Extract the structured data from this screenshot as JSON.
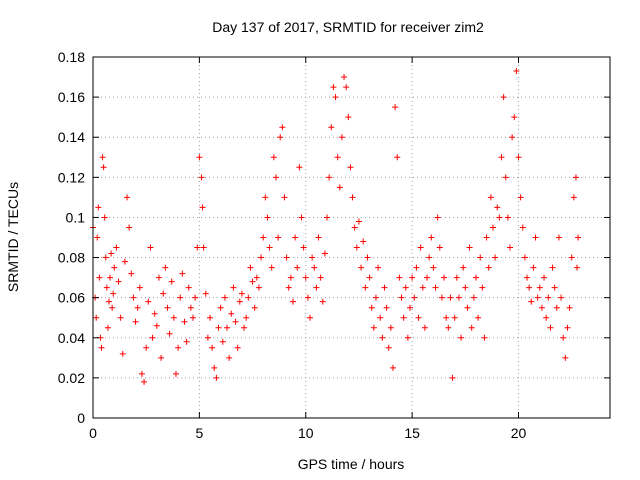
{
  "chart_data": {
    "type": "scatter",
    "title": "Day 137 of 2017, SRMTID for receiver zim2",
    "xlabel": "GPS time / hours",
    "ylabel": "SRMTID / TECUs",
    "xlim": [
      0,
      24.3
    ],
    "ylim": [
      0,
      0.18
    ],
    "x_ticks": [
      0,
      5,
      10,
      15,
      20
    ],
    "y_ticks": [
      0,
      0.02,
      0.04,
      0.06,
      0.08,
      0.1,
      0.12,
      0.14,
      0.16,
      0.18
    ],
    "x_tick_labels": [
      "0",
      "5",
      "10",
      "15",
      "20"
    ],
    "y_tick_labels": [
      "0",
      "0.02",
      "0.04",
      "0.06",
      "0.08",
      "0.1",
      "0.12",
      "0.14",
      "0.16",
      "0.18"
    ],
    "grid": true,
    "marker": "+",
    "color": "#ff0000",
    "series": [
      {
        "name": "SRMTID",
        "points": [
          [
            0.0,
            0.095
          ],
          [
            0.1,
            0.06
          ],
          [
            0.15,
            0.05
          ],
          [
            0.2,
            0.09
          ],
          [
            0.25,
            0.105
          ],
          [
            0.3,
            0.07
          ],
          [
            0.35,
            0.04
          ],
          [
            0.4,
            0.035
          ],
          [
            0.45,
            0.13
          ],
          [
            0.5,
            0.125
          ],
          [
            0.55,
            0.1
          ],
          [
            0.6,
            0.08
          ],
          [
            0.65,
            0.065
          ],
          [
            0.7,
            0.045
          ],
          [
            0.75,
            0.058
          ],
          [
            0.8,
            0.07
          ],
          [
            0.85,
            0.082
          ],
          [
            0.9,
            0.055
          ],
          [
            0.95,
            0.062
          ],
          [
            1.0,
            0.075
          ],
          [
            1.1,
            0.085
          ],
          [
            1.2,
            0.068
          ],
          [
            1.3,
            0.05
          ],
          [
            1.4,
            0.032
          ],
          [
            1.5,
            0.078
          ],
          [
            1.6,
            0.11
          ],
          [
            1.7,
            0.095
          ],
          [
            1.8,
            0.072
          ],
          [
            1.9,
            0.06
          ],
          [
            2.0,
            0.048
          ],
          [
            2.1,
            0.055
          ],
          [
            2.2,
            0.065
          ],
          [
            2.3,
            0.022
          ],
          [
            2.4,
            0.018
          ],
          [
            2.5,
            0.035
          ],
          [
            2.6,
            0.058
          ],
          [
            2.7,
            0.085
          ],
          [
            2.8,
            0.04
          ],
          [
            2.9,
            0.052
          ],
          [
            3.0,
            0.046
          ],
          [
            3.1,
            0.07
          ],
          [
            3.2,
            0.03
          ],
          [
            3.3,
            0.062
          ],
          [
            3.4,
            0.075
          ],
          [
            3.5,
            0.055
          ],
          [
            3.6,
            0.042
          ],
          [
            3.7,
            0.068
          ],
          [
            3.8,
            0.05
          ],
          [
            3.9,
            0.022
          ],
          [
            4.0,
            0.035
          ],
          [
            4.1,
            0.06
          ],
          [
            4.2,
            0.072
          ],
          [
            4.3,
            0.048
          ],
          [
            4.4,
            0.038
          ],
          [
            4.5,
            0.065
          ],
          [
            4.6,
            0.055
          ],
          [
            4.7,
            0.05
          ],
          [
            4.8,
            0.06
          ],
          [
            4.9,
            0.085
          ],
          [
            5.0,
            0.13
          ],
          [
            5.1,
            0.12
          ],
          [
            5.15,
            0.105
          ],
          [
            5.2,
            0.085
          ],
          [
            5.3,
            0.062
          ],
          [
            5.4,
            0.04
          ],
          [
            5.5,
            0.05
          ],
          [
            5.6,
            0.035
          ],
          [
            5.7,
            0.025
          ],
          [
            5.8,
            0.02
          ],
          [
            5.9,
            0.045
          ],
          [
            6.0,
            0.055
          ],
          [
            6.1,
            0.038
          ],
          [
            6.2,
            0.06
          ],
          [
            6.3,
            0.045
          ],
          [
            6.4,
            0.03
          ],
          [
            6.5,
            0.052
          ],
          [
            6.6,
            0.065
          ],
          [
            6.7,
            0.048
          ],
          [
            6.8,
            0.035
          ],
          [
            6.9,
            0.058
          ],
          [
            7.0,
            0.062
          ],
          [
            7.1,
            0.045
          ],
          [
            7.2,
            0.05
          ],
          [
            7.3,
            0.06
          ],
          [
            7.4,
            0.075
          ],
          [
            7.5,
            0.068
          ],
          [
            7.6,
            0.055
          ],
          [
            7.7,
            0.07
          ],
          [
            7.8,
            0.065
          ],
          [
            7.9,
            0.08
          ],
          [
            8.0,
            0.09
          ],
          [
            8.1,
            0.11
          ],
          [
            8.2,
            0.1
          ],
          [
            8.3,
            0.085
          ],
          [
            8.4,
            0.075
          ],
          [
            8.5,
            0.13
          ],
          [
            8.6,
            0.12
          ],
          [
            8.7,
            0.09
          ],
          [
            8.8,
            0.14
          ],
          [
            8.9,
            0.145
          ],
          [
            9.0,
            0.11
          ],
          [
            9.1,
            0.08
          ],
          [
            9.2,
            0.065
          ],
          [
            9.3,
            0.07
          ],
          [
            9.4,
            0.058
          ],
          [
            9.5,
            0.09
          ],
          [
            9.6,
            0.075
          ],
          [
            9.7,
            0.125
          ],
          [
            9.8,
            0.1
          ],
          [
            9.9,
            0.085
          ],
          [
            10.0,
            0.07
          ],
          [
            10.1,
            0.06
          ],
          [
            10.2,
            0.05
          ],
          [
            10.3,
            0.08
          ],
          [
            10.4,
            0.075
          ],
          [
            10.5,
            0.065
          ],
          [
            10.6,
            0.09
          ],
          [
            10.7,
            0.07
          ],
          [
            10.8,
            0.058
          ],
          [
            10.9,
            0.082
          ],
          [
            11.0,
            0.1
          ],
          [
            11.1,
            0.12
          ],
          [
            11.2,
            0.145
          ],
          [
            11.3,
            0.165
          ],
          [
            11.4,
            0.16
          ],
          [
            11.5,
            0.13
          ],
          [
            11.6,
            0.115
          ],
          [
            11.7,
            0.14
          ],
          [
            11.8,
            0.17
          ],
          [
            11.9,
            0.165
          ],
          [
            12.0,
            0.15
          ],
          [
            12.1,
            0.125
          ],
          [
            12.2,
            0.11
          ],
          [
            12.3,
            0.095
          ],
          [
            12.4,
            0.085
          ],
          [
            12.5,
            0.098
          ],
          [
            12.6,
            0.075
          ],
          [
            12.7,
            0.088
          ],
          [
            12.8,
            0.065
          ],
          [
            12.9,
            0.08
          ],
          [
            13.0,
            0.07
          ],
          [
            13.1,
            0.055
          ],
          [
            13.2,
            0.045
          ],
          [
            13.3,
            0.06
          ],
          [
            13.4,
            0.075
          ],
          [
            13.5,
            0.05
          ],
          [
            13.6,
            0.04
          ],
          [
            13.7,
            0.065
          ],
          [
            13.8,
            0.055
          ],
          [
            13.9,
            0.035
          ],
          [
            14.0,
            0.045
          ],
          [
            14.1,
            0.025
          ],
          [
            14.2,
            0.155
          ],
          [
            14.3,
            0.13
          ],
          [
            14.4,
            0.07
          ],
          [
            14.5,
            0.06
          ],
          [
            14.6,
            0.05
          ],
          [
            14.7,
            0.065
          ],
          [
            14.8,
            0.04
          ],
          [
            14.9,
            0.055
          ],
          [
            15.0,
            0.07
          ],
          [
            15.1,
            0.06
          ],
          [
            15.2,
            0.075
          ],
          [
            15.3,
            0.05
          ],
          [
            15.4,
            0.085
          ],
          [
            15.5,
            0.065
          ],
          [
            15.6,
            0.045
          ],
          [
            15.7,
            0.07
          ],
          [
            15.8,
            0.08
          ],
          [
            15.9,
            0.09
          ],
          [
            16.0,
            0.075
          ],
          [
            16.1,
            0.065
          ],
          [
            16.2,
            0.1
          ],
          [
            16.3,
            0.085
          ],
          [
            16.4,
            0.06
          ],
          [
            16.5,
            0.07
          ],
          [
            16.6,
            0.05
          ],
          [
            16.7,
            0.045
          ],
          [
            16.8,
            0.06
          ],
          [
            16.9,
            0.02
          ],
          [
            17.0,
            0.05
          ],
          [
            17.1,
            0.07
          ],
          [
            17.2,
            0.06
          ],
          [
            17.3,
            0.04
          ],
          [
            17.4,
            0.075
          ],
          [
            17.5,
            0.065
          ],
          [
            17.6,
            0.055
          ],
          [
            17.7,
            0.085
          ],
          [
            17.8,
            0.045
          ],
          [
            17.9,
            0.06
          ],
          [
            18.0,
            0.07
          ],
          [
            18.1,
            0.05
          ],
          [
            18.2,
            0.08
          ],
          [
            18.3,
            0.065
          ],
          [
            18.4,
            0.04
          ],
          [
            18.5,
            0.09
          ],
          [
            18.6,
            0.075
          ],
          [
            18.7,
            0.11
          ],
          [
            18.8,
            0.095
          ],
          [
            18.9,
            0.08
          ],
          [
            19.0,
            0.105
          ],
          [
            19.1,
            0.1
          ],
          [
            19.2,
            0.13
          ],
          [
            19.3,
            0.16
          ],
          [
            19.4,
            0.12
          ],
          [
            19.5,
            0.1
          ],
          [
            19.6,
            0.085
          ],
          [
            19.7,
            0.14
          ],
          [
            19.8,
            0.15
          ],
          [
            19.9,
            0.173
          ],
          [
            20.0,
            0.13
          ],
          [
            20.1,
            0.11
          ],
          [
            20.2,
            0.095
          ],
          [
            20.3,
            0.08
          ],
          [
            20.4,
            0.07
          ],
          [
            20.5,
            0.065
          ],
          [
            20.6,
            0.058
          ],
          [
            20.7,
            0.075
          ],
          [
            20.8,
            0.09
          ],
          [
            20.9,
            0.06
          ],
          [
            21.0,
            0.065
          ],
          [
            21.1,
            0.055
          ],
          [
            21.2,
            0.07
          ],
          [
            21.3,
            0.05
          ],
          [
            21.4,
            0.06
          ],
          [
            21.5,
            0.045
          ],
          [
            21.6,
            0.075
          ],
          [
            21.7,
            0.065
          ],
          [
            21.8,
            0.055
          ],
          [
            21.9,
            0.09
          ],
          [
            22.0,
            0.06
          ],
          [
            22.1,
            0.04
          ],
          [
            22.2,
            0.03
          ],
          [
            22.3,
            0.045
          ],
          [
            22.4,
            0.055
          ],
          [
            22.5,
            0.08
          ],
          [
            22.6,
            0.11
          ],
          [
            22.7,
            0.12
          ],
          [
            22.75,
            0.075
          ],
          [
            22.8,
            0.09
          ]
        ]
      }
    ]
  }
}
